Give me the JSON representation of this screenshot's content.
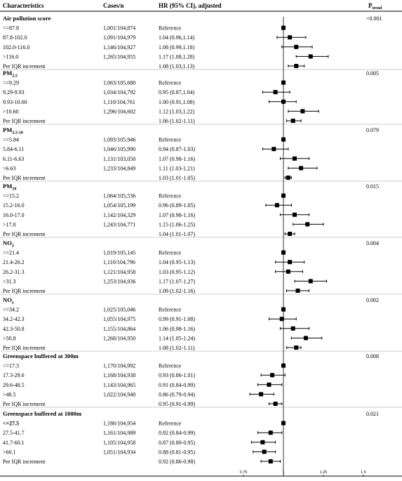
{
  "headers": {
    "characteristics": "Characteristics",
    "cases": "Cases/n",
    "hr": "HR (95% CI), adjusted",
    "ptrend_main": "P",
    "ptrend_sub": "trend"
  },
  "groups": [
    {
      "title": {
        "main": "Air pollution score",
        "sub": ""
      },
      "p_trend": "<0.001",
      "rows": [
        {
          "label": "<=87.8",
          "cases": "1,001/104,874",
          "hr_text": "Reference",
          "hr": 1.0,
          "lo": 1.0,
          "hi": 1.0
        },
        {
          "label": "87.8-102.0",
          "cases": "1,091/104,979",
          "hr_text": "1.04 (0.96,1.14)",
          "hr": 1.04,
          "lo": 0.96,
          "hi": 1.14
        },
        {
          "label": "102.0-116.0",
          "cases": "1,146/104,927",
          "hr_text": "1.08 (0.99,1.18)",
          "hr": 1.08,
          "lo": 0.99,
          "hi": 1.18
        },
        {
          "label": ">116.0",
          "cases": "1,265/104,955",
          "hr_text": "1.17 (1.08,1.28)",
          "hr": 1.17,
          "lo": 1.08,
          "hi": 1.28
        },
        {
          "label": "Per IQR increment",
          "cases": "",
          "hr_text": "1.08 (1.03,1.13)",
          "hr": 1.08,
          "lo": 1.03,
          "hi": 1.13
        }
      ]
    },
    {
      "title": {
        "main": "PM",
        "sub": "2.5"
      },
      "p_trend": "0.005",
      "rows": [
        {
          "label": "<=9.29",
          "cases": "1,063/105,680",
          "hr_text": "Reference",
          "hr": 1.0,
          "lo": 1.0,
          "hi": 1.0
        },
        {
          "label": "9.29-9.93",
          "cases": "1,034/104,792",
          "hr_text": "0.95 (0.87,1.04)",
          "hr": 0.95,
          "lo": 0.87,
          "hi": 1.04
        },
        {
          "label": "9.93-10.60",
          "cases": "1,110/104,761",
          "hr_text": "1.00 (0.91,1.08)",
          "hr": 1.0,
          "lo": 0.91,
          "hi": 1.08
        },
        {
          "label": ">10.60",
          "cases": "1,296/104,602",
          "hr_text": "1.12 (1.03,1.22)",
          "hr": 1.12,
          "lo": 1.03,
          "hi": 1.22
        },
        {
          "label": "Per IQR increment",
          "cases": "",
          "hr_text": "1.06 (1.02-1.11)",
          "hr": 1.06,
          "lo": 1.02,
          "hi": 1.11
        }
      ]
    },
    {
      "title": {
        "main": "PM",
        "sub": "2.5-10"
      },
      "p_trend": "0.079",
      "rows": [
        {
          "label": "<=5.84",
          "cases": "1,093/105,946",
          "hr_text": "Reference",
          "hr": 1.0,
          "lo": 1.0,
          "hi": 1.0
        },
        {
          "label": "5.84-6.11",
          "cases": "1,046/105,990",
          "hr_text": "0.94 (0.87-1.03)",
          "hr": 0.94,
          "lo": 0.87,
          "hi": 1.03
        },
        {
          "label": "6.11-6.63",
          "cases": "1,131/103,050",
          "hr_text": "1.07 (0.98-1.16)",
          "hr": 1.07,
          "lo": 0.98,
          "hi": 1.16
        },
        {
          "label": ">6.63",
          "cases": "1,233/104,849",
          "hr_text": "1.11 (1.03-1.21)",
          "hr": 1.11,
          "lo": 1.03,
          "hi": 1.21
        },
        {
          "label": "Per IQR increment",
          "cases": "",
          "hr_text": "1.03 (1.01-1.05)",
          "hr": 1.03,
          "lo": 1.01,
          "hi": 1.05
        }
      ]
    },
    {
      "title": {
        "main": "PM",
        "sub": "10"
      },
      "p_trend": "0.015",
      "rows": [
        {
          "label": "<=15.2",
          "cases": "1,064/105,536",
          "hr_text": "Reference",
          "hr": 1.0,
          "lo": 1.0,
          "hi": 1.0
        },
        {
          "label": "15.2-16.0",
          "cases": "1,054/105,199",
          "hr_text": "0.96 (0.89-1.05)",
          "hr": 0.96,
          "lo": 0.89,
          "hi": 1.05
        },
        {
          "label": "16.0-17.0",
          "cases": "1,142/104,329",
          "hr_text": "1.07 (0.98-1.16)",
          "hr": 1.07,
          "lo": 0.98,
          "hi": 1.16
        },
        {
          "label": ">17.0",
          "cases": "1,243/104,771",
          "hr_text": "1.15 (1.06-1.25)",
          "hr": 1.15,
          "lo": 1.06,
          "hi": 1.25
        },
        {
          "label": "Per IQR increment",
          "cases": "",
          "hr_text": "1.04 (1.01-1.07)",
          "hr": 1.04,
          "lo": 1.01,
          "hi": 1.07
        }
      ]
    },
    {
      "title": {
        "main": "NO",
        "sub": "2"
      },
      "p_trend": "0.004",
      "rows": [
        {
          "label": "<=21.4",
          "cases": "1,019/105,145",
          "hr_text": "Reference",
          "hr": 1.0,
          "lo": 1.0,
          "hi": 1.0
        },
        {
          "label": "21.4-26.2",
          "cases": "1,110/104,796",
          "hr_text": "1.04 (0.95-1.13)",
          "hr": 1.04,
          "lo": 0.95,
          "hi": 1.13
        },
        {
          "label": "26.2-31.3",
          "cases": "1,121/104,958",
          "hr_text": "1.03 (0.95-1.12)",
          "hr": 1.03,
          "lo": 0.95,
          "hi": 1.12
        },
        {
          "label": ">31.3",
          "cases": "1,253/104,936",
          "hr_text": "1.17 (1.07-1.27)",
          "hr": 1.17,
          "lo": 1.07,
          "hi": 1.27
        },
        {
          "label": "Per IQR increment",
          "cases": "",
          "hr_text": "1.09 (1.02-1.16)",
          "hr": 1.09,
          "lo": 1.02,
          "hi": 1.16
        }
      ]
    },
    {
      "title": {
        "main": "NO",
        "sub": "x"
      },
      "p_trend": "0.002",
      "rows": [
        {
          "label": "<=34.2",
          "cases": "1,025/105,046",
          "hr_text": "Reference",
          "hr": 1.0,
          "lo": 1.0,
          "hi": 1.0
        },
        {
          "label": "34.2-42.3",
          "cases": "1,055/104,975",
          "hr_text": "0.99 (0.91-1.08)",
          "hr": 0.99,
          "lo": 0.91,
          "hi": 1.08
        },
        {
          "label": "42.3-50.8",
          "cases": "1,155/104,864",
          "hr_text": "1.06 (0.98-1.16)",
          "hr": 1.06,
          "lo": 0.98,
          "hi": 1.16
        },
        {
          "label": ">50.8",
          "cases": "1,268/104,950",
          "hr_text": "1.14 (1.05-1.24)",
          "hr": 1.14,
          "lo": 1.05,
          "hi": 1.24
        },
        {
          "label": "Per IQR increment",
          "cases": "",
          "hr_text": "1.08 (1.02-1.11)",
          "hr": 1.08,
          "lo": 1.02,
          "hi": 1.11
        }
      ]
    },
    {
      "title": {
        "main": "Greenspace buffered at 300m",
        "sub": ""
      },
      "p_trend": "0.008",
      "rows": [
        {
          "label": "<=17.3",
          "cases": "1,170/104,992",
          "hr_text": "Reference",
          "hr": 1.0,
          "lo": 1.0,
          "hi": 1.0
        },
        {
          "label": "17.3-29.6",
          "cases": "1,168/104,938",
          "hr_text": "0.93 (0.86-1.01)",
          "hr": 0.93,
          "lo": 0.86,
          "hi": 1.01
        },
        {
          "label": "29.6-48.5",
          "cases": "1,143/104,965",
          "hr_text": "0.91 (0.84-0.99)",
          "hr": 0.91,
          "lo": 0.84,
          "hi": 0.99
        },
        {
          "label": ">48.5",
          "cases": "1,022/104,940",
          "hr_text": "0.86 (0.79-0.94)",
          "hr": 0.86,
          "lo": 0.79,
          "hi": 0.94
        },
        {
          "label": "Per IQR increment",
          "cases": "",
          "hr_text": "0.95 (0.91-0.99)",
          "hr": 0.95,
          "lo": 0.91,
          "hi": 0.99
        }
      ]
    },
    {
      "title": {
        "main": "Greenspace buffered at 1000m",
        "sub": ""
      },
      "p_trend": "0.021",
      "rows": [
        {
          "label": "<=27.5",
          "label_bold": true,
          "cases": "1,186/104,954",
          "hr_text": "Reference",
          "hr": 1.0,
          "lo": 1.0,
          "hi": 1.0
        },
        {
          "label": "27.5-41.7",
          "cases": "1,161/104,989",
          "hr_text": "0.92 (0.84-0.99)",
          "hr": 0.92,
          "lo": 0.84,
          "hi": 0.99
        },
        {
          "label": "41.7-60.1",
          "cases": "1,105/104,958",
          "hr_text": "0.87 (0.80-0.95)",
          "hr": 0.87,
          "lo": 0.8,
          "hi": 0.95
        },
        {
          "label": ">60.1",
          "cases": "1,051/104,934",
          "hr_text": "0.88 (0.81-0.95)",
          "hr": 0.88,
          "lo": 0.81,
          "hi": 0.95
        },
        {
          "label": "Per IQR increment",
          "cases": "",
          "hr_text": "0.92 (0.86-0.98)",
          "hr": 0.92,
          "lo": 0.86,
          "hi": 0.98
        }
      ]
    }
  ],
  "chart_data": {
    "type": "scatter",
    "subtype": "forest-plot",
    "xlim": [
      0.75,
      1.5
    ],
    "xticks": [
      "0.75",
      "1",
      "1.25",
      "1.5"
    ],
    "reference_line": 1.0,
    "xlabel": "",
    "ylabel": ""
  }
}
